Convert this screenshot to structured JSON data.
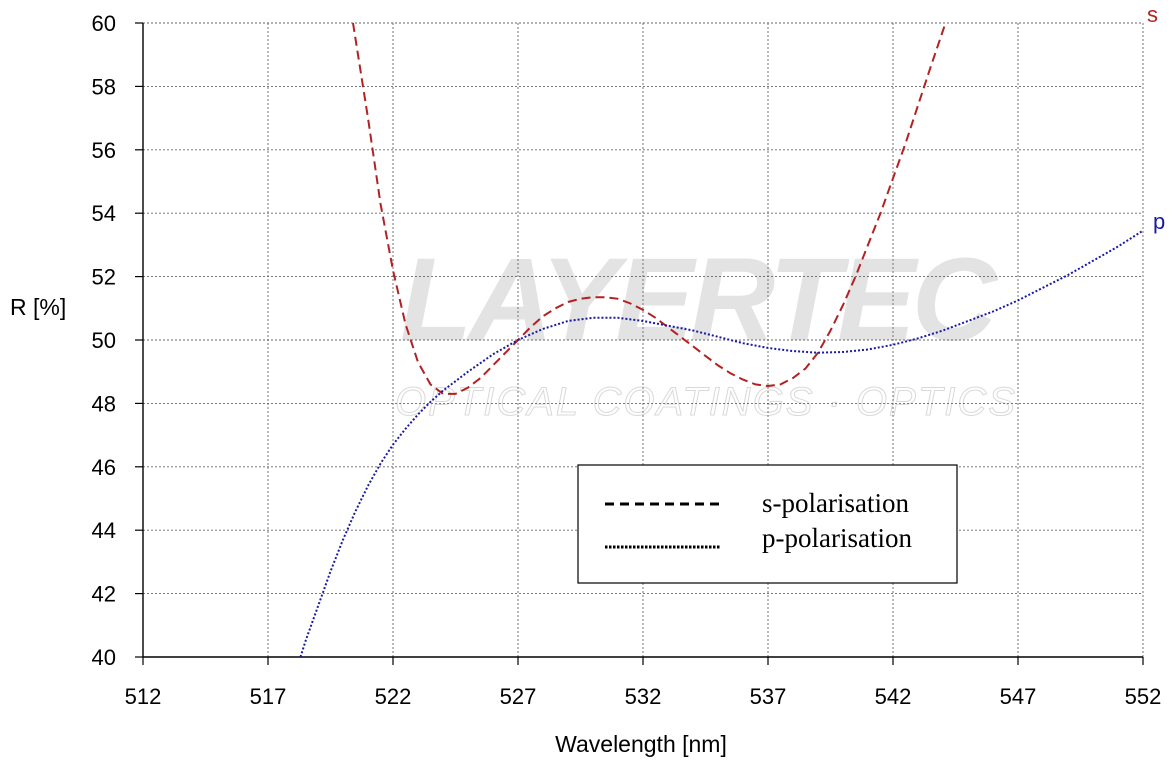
{
  "chart_data": {
    "type": "line",
    "xlabel": "Wavelength [nm]",
    "ylabel": "R [%]",
    "xlim": [
      512,
      552
    ],
    "ylim": [
      40,
      60
    ],
    "xticks": [
      512,
      517,
      522,
      527,
      532,
      537,
      542,
      547,
      552
    ],
    "yticks": [
      40,
      42,
      44,
      46,
      48,
      50,
      52,
      54,
      56,
      58,
      60
    ],
    "grid": true,
    "legend_placement": "lower-right",
    "watermark": {
      "name": "LAYERTEC",
      "tagline": "OPTICAL COATINGS · OPTICS"
    },
    "series": [
      {
        "name": "s-polarisation",
        "end_label": "s",
        "color": "#b22222",
        "style": "dashed",
        "x": [
          520.4,
          521.0,
          521.5,
          522.0,
          522.5,
          523.0,
          523.5,
          524.0,
          524.5,
          525.0,
          525.5,
          526.0,
          526.5,
          527.0,
          527.5,
          528.0,
          528.5,
          529.0,
          529.5,
          530.0,
          530.5,
          531.0,
          531.5,
          532.0,
          532.5,
          533.0,
          533.5,
          534.0,
          534.5,
          535.0,
          535.5,
          536.0,
          536.5,
          537.0,
          537.5,
          538.0,
          538.5,
          539.0,
          539.5,
          540.0,
          540.5,
          541.0,
          541.5,
          542.0,
          542.5,
          543.0,
          543.5,
          544.1
        ],
        "y": [
          60.0,
          57.0,
          54.3,
          52.2,
          50.5,
          49.3,
          48.6,
          48.3,
          48.3,
          48.5,
          48.8,
          49.2,
          49.6,
          50.0,
          50.4,
          50.75,
          51.0,
          51.2,
          51.3,
          51.35,
          51.35,
          51.3,
          51.15,
          50.95,
          50.7,
          50.4,
          50.1,
          49.8,
          49.5,
          49.2,
          48.95,
          48.75,
          48.6,
          48.55,
          48.6,
          48.8,
          49.1,
          49.6,
          50.3,
          51.1,
          52.0,
          53.0,
          54.0,
          55.1,
          56.2,
          57.4,
          58.6,
          60.0
        ]
      },
      {
        "name": "p-polarisation",
        "end_label": "p",
        "color": "#1a1aa0",
        "style": "dotted",
        "x": [
          518.3,
          518.5,
          519.0,
          519.5,
          520.0,
          520.5,
          521.0,
          521.5,
          522.0,
          522.5,
          523.0,
          523.5,
          524.0,
          524.5,
          525.0,
          526.0,
          527.0,
          528.0,
          529.0,
          530.0,
          531.0,
          532.0,
          533.0,
          534.0,
          535.0,
          536.0,
          537.0,
          538.0,
          539.0,
          540.0,
          541.0,
          542.0,
          543.0,
          544.0,
          545.0,
          546.0,
          547.0,
          548.0,
          549.0,
          550.0,
          551.0,
          552.0
        ],
        "y": [
          40.0,
          40.5,
          41.6,
          42.7,
          43.7,
          44.6,
          45.4,
          46.1,
          46.7,
          47.2,
          47.65,
          48.05,
          48.4,
          48.7,
          49.0,
          49.55,
          50.0,
          50.35,
          50.6,
          50.7,
          50.7,
          50.6,
          50.45,
          50.3,
          50.1,
          49.9,
          49.75,
          49.65,
          49.6,
          49.62,
          49.7,
          49.85,
          50.05,
          50.3,
          50.6,
          50.9,
          51.25,
          51.65,
          52.05,
          52.5,
          52.95,
          53.45
        ]
      }
    ]
  }
}
